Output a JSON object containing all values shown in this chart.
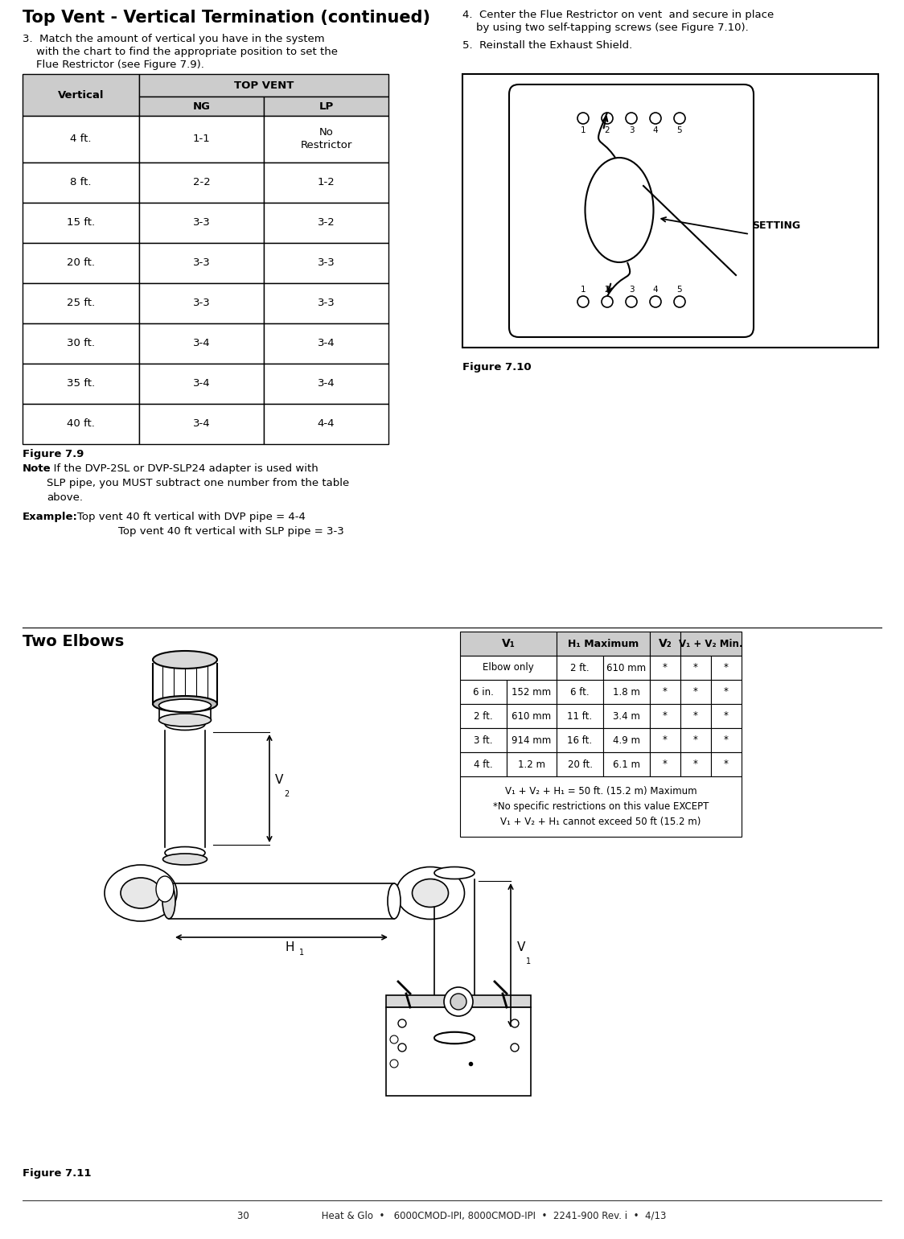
{
  "title": "Top Vent - Vertical Termination (continued)",
  "step3_text_line1": "3.  Match the amount of vertical you have in the system",
  "step3_text_line2": "    with the chart to find the appropriate position to set the",
  "step3_text_line3": "    Flue Restrictor (see Figure 7.9).",
  "step4_text_line1": "4.  Center the Flue Restrictor on vent  and secure in place",
  "step4_text_line2": "    by using two self-tapping screws (see Figure 7.10).",
  "step5_text": "5.  Reinstall the Exhaust Shield.",
  "table1_data": [
    [
      "4 ft.",
      "1-1",
      "No\nRestrictor"
    ],
    [
      "8 ft.",
      "2-2",
      "1-2"
    ],
    [
      "15 ft.",
      "3-3",
      "3-2"
    ],
    [
      "20 ft.",
      "3-3",
      "3-3"
    ],
    [
      "25 ft.",
      "3-3",
      "3-3"
    ],
    [
      "30 ft.",
      "3-4",
      "3-4"
    ],
    [
      "35 ft.",
      "3-4",
      "3-4"
    ],
    [
      "40 ft.",
      "3-4",
      "4-4"
    ]
  ],
  "fig79_label": "Figure 7.9",
  "fig710_label": "Figure 7.10",
  "fig711_label": "Figure 7.11",
  "two_elbows_label": "Two Elbows",
  "table2_data": [
    [
      "Elbow only",
      "",
      "2 ft.",
      "610 mm",
      "*",
      "*",
      "*"
    ],
    [
      "6 in.",
      "152 mm",
      "6 ft.",
      "1.8 m",
      "*",
      "*",
      "*"
    ],
    [
      "2 ft.",
      "610 mm",
      "11 ft.",
      "3.4 m",
      "*",
      "*",
      "*"
    ],
    [
      "3 ft.",
      "914 mm",
      "16 ft.",
      "4.9 m",
      "*",
      "*",
      "*"
    ],
    [
      "4 ft.",
      "1.2 m",
      "20 ft.",
      "6.1 m",
      "*",
      "*",
      "*"
    ]
  ],
  "table2_footer": "V₁ + V₂ + H₁ = 50 ft. (15.2 m) Maximum\n*No specific restrictions on this value EXCEPT\nV₁ + V₂ + H₁ cannot exceed 50 ft (15.2 m)",
  "footer_text": "30                        Heat & Glo  •   6000CMOD-IPI, 8000CMOD-IPI  •  2241-900 Rev. i  •  4/13",
  "bg_color": "#ffffff",
  "header_bg": "#cccccc",
  "black": "#000000",
  "font_body": 9.5,
  "font_table": 9.5,
  "font_title": 15,
  "font_small": 8
}
